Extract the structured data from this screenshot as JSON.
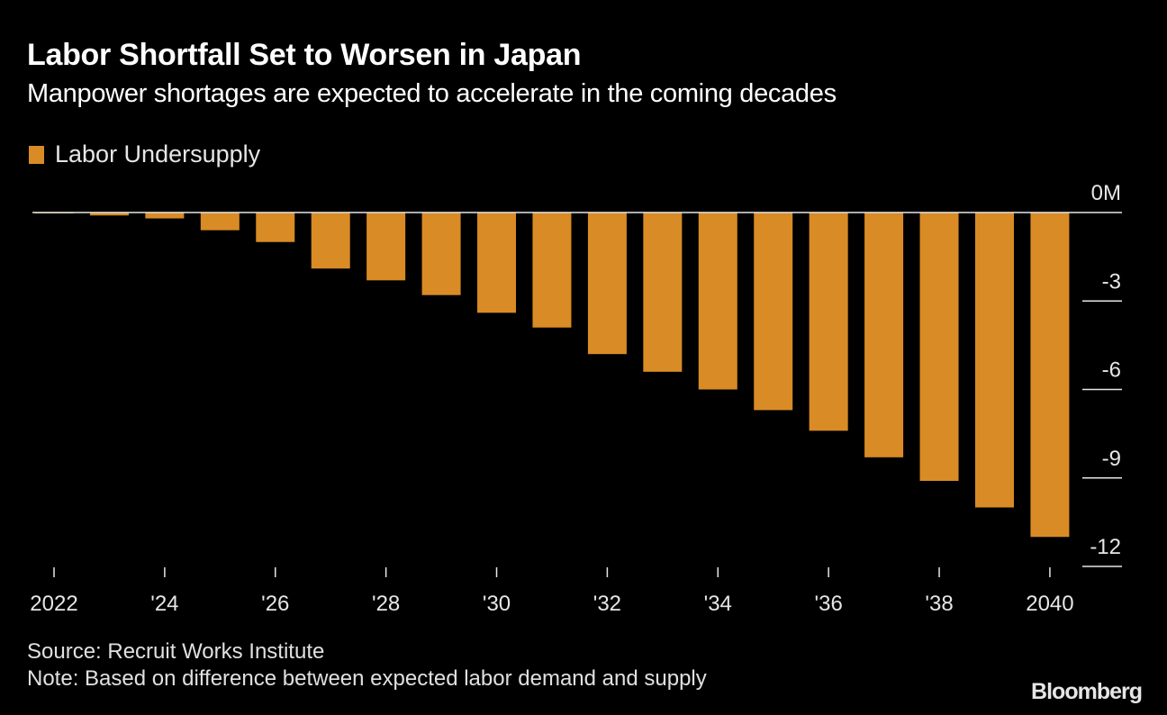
{
  "header": {
    "title": "Labor Shortfall Set to Worsen in Japan",
    "subtitle": "Manpower shortages are expected to accelerate in the coming decades"
  },
  "footer": {
    "source": "Source: Recruit Works Institute",
    "note": "Note: Based on difference between expected labor demand and supply",
    "brand": "Bloomberg"
  },
  "chart_data": {
    "type": "bar",
    "title": "Labor Shortfall Set to Worsen in Japan",
    "subtitle": "Manpower shortages are expected to accelerate in the coming decades",
    "xlabel": "",
    "ylabel": "",
    "legend": {
      "position": "top-left",
      "entries": [
        "Labor Undersupply"
      ]
    },
    "series_color": "#d98b25",
    "categories": [
      "2022",
      "2023",
      "2024",
      "2025",
      "2026",
      "2027",
      "2028",
      "2029",
      "2030",
      "2031",
      "2032",
      "2033",
      "2034",
      "2035",
      "2036",
      "2037",
      "2038",
      "2039",
      "2040"
    ],
    "series": [
      {
        "name": "Labor Undersupply",
        "values": [
          -0.02,
          -0.1,
          -0.2,
          -0.6,
          -1.0,
          -1.9,
          -2.3,
          -2.8,
          -3.4,
          -3.9,
          -4.8,
          -5.4,
          -6.0,
          -6.7,
          -7.4,
          -8.3,
          -9.1,
          -10.0,
          -11.0
        ]
      }
    ],
    "ylim": [
      -12,
      0
    ],
    "yticks": [
      0,
      -3,
      -6,
      -9,
      -12
    ],
    "ytick_labels": [
      "0M",
      "-3",
      "-6",
      "-9",
      "-12"
    ],
    "xtick_labels": [
      {
        "category": "2022",
        "label": "2022"
      },
      {
        "category": "2024",
        "label": "'24"
      },
      {
        "category": "2026",
        "label": "'26"
      },
      {
        "category": "2028",
        "label": "'28"
      },
      {
        "category": "2030",
        "label": "'30"
      },
      {
        "category": "2032",
        "label": "'32"
      },
      {
        "category": "2034",
        "label": "'34"
      },
      {
        "category": "2036",
        "label": "'36"
      },
      {
        "category": "2038",
        "label": "'38"
      },
      {
        "category": "2040",
        "label": "2040"
      }
    ],
    "y_axis_side": "right",
    "grid": false
  }
}
